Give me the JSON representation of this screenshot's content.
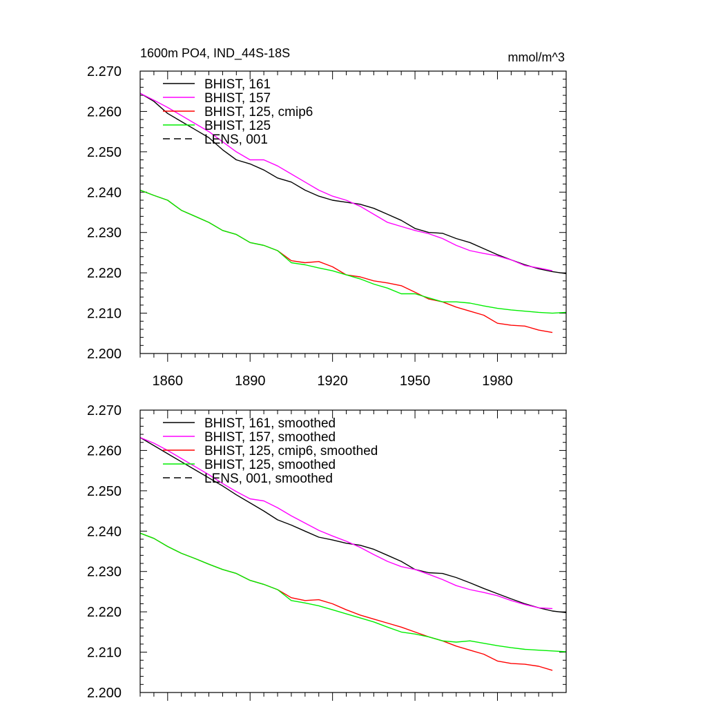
{
  "colors": {
    "black": "#000000",
    "magenta": "#ff00ff",
    "red": "#ff0000",
    "green": "#00ee00"
  },
  "chart_data": [
    {
      "type": "line",
      "title": "1600m PO4, IND_44S-18S",
      "units": "mmol/m^3",
      "ylim": [
        2.2,
        2.27
      ],
      "xlim": [
        1850,
        2005
      ],
      "y_ticks": [
        "2.200",
        "2.210",
        "2.220",
        "2.230",
        "2.240",
        "2.250",
        "2.260",
        "2.270"
      ],
      "x_ticks": [
        "1860",
        "1890",
        "1920",
        "1950",
        "1980"
      ],
      "show_x_tick_labels": true,
      "legend": "top-left",
      "series": [
        {
          "name": "BHIST, 161",
          "color": "#000000",
          "dash": "solid",
          "x": [
            1850,
            1855,
            1860,
            1865,
            1870,
            1875,
            1880,
            1885,
            1890,
            1895,
            1900,
            1905,
            1910,
            1915,
            1920,
            1925,
            1930,
            1935,
            1940,
            1945,
            1950,
            1955,
            1960,
            1965,
            1970,
            1975,
            1980,
            1985,
            1990,
            1995,
            2000,
            2005
          ],
          "y": [
            2.2645,
            2.2625,
            2.2595,
            2.2575,
            2.2555,
            2.2535,
            2.2505,
            2.248,
            2.247,
            2.2455,
            2.2435,
            2.2425,
            2.2405,
            2.239,
            2.238,
            2.2375,
            2.237,
            2.236,
            2.2345,
            2.233,
            2.231,
            2.23,
            2.2298,
            2.2285,
            2.2275,
            2.226,
            2.2245,
            2.2232,
            2.222,
            2.221,
            2.2203,
            2.2198
          ]
        },
        {
          "name": "BHIST, 157",
          "color": "#ff00ff",
          "dash": "solid",
          "x": [
            1850,
            1855,
            1860,
            1865,
            1870,
            1875,
            1880,
            1885,
            1890,
            1895,
            1900,
            1905,
            1910,
            1915,
            1920,
            1925,
            1930,
            1935,
            1940,
            1945,
            1950,
            1955,
            1960,
            1965,
            1970,
            1975,
            1980,
            1985,
            1990,
            1995,
            2000
          ],
          "y": [
            2.2645,
            2.2628,
            2.261,
            2.259,
            2.257,
            2.255,
            2.2525,
            2.25,
            2.248,
            2.248,
            2.2465,
            2.2445,
            2.2425,
            2.2405,
            2.239,
            2.238,
            2.2365,
            2.2345,
            2.2325,
            2.2315,
            2.2305,
            2.2297,
            2.2285,
            2.2268,
            2.2255,
            2.2248,
            2.2242,
            2.2232,
            2.2218,
            2.2212,
            2.2205
          ]
        },
        {
          "name": "BHIST, 125, cmip6",
          "color": "#ff0000",
          "dash": "solid",
          "x": [
            1850,
            1855,
            1860,
            1865,
            1870,
            1875,
            1880,
            1885,
            1890,
            1895,
            1900,
            1905,
            1910,
            1915,
            1920,
            1925,
            1930,
            1935,
            1940,
            1945,
            1950,
            1955,
            1960,
            1965,
            1970,
            1975,
            1980,
            1985,
            1990,
            1995,
            2000
          ],
          "y": [
            2.2405,
            2.2392,
            2.238,
            2.2355,
            2.234,
            2.2325,
            2.2305,
            2.2295,
            2.2275,
            2.2268,
            2.2255,
            2.223,
            2.2225,
            2.2228,
            2.2215,
            2.2195,
            2.219,
            2.218,
            2.2175,
            2.2168,
            2.2152,
            2.2135,
            2.2128,
            2.2115,
            2.2105,
            2.2095,
            2.2075,
            2.207,
            2.2068,
            2.2058,
            2.2052
          ]
        },
        {
          "name": "BHIST, 125",
          "color": "#00ee00",
          "dash": "solid",
          "x": [
            1850,
            1855,
            1860,
            1865,
            1870,
            1875,
            1880,
            1885,
            1890,
            1895,
            1900,
            1905,
            1910,
            1915,
            1920,
            1925,
            1930,
            1935,
            1940,
            1945,
            1950,
            1955,
            1960,
            1965,
            1970,
            1975,
            1980,
            1985,
            1990,
            1995,
            2000,
            2005
          ],
          "y": [
            2.2405,
            2.2392,
            2.238,
            2.2355,
            2.234,
            2.2325,
            2.2305,
            2.2295,
            2.2275,
            2.2268,
            2.2255,
            2.2225,
            2.222,
            2.2212,
            2.2205,
            2.2195,
            2.2185,
            2.2172,
            2.2162,
            2.2148,
            2.2148,
            2.2138,
            2.2128,
            2.2128,
            2.2125,
            2.2118,
            2.2112,
            2.2108,
            2.2105,
            2.2102,
            2.21,
            2.2102
          ]
        },
        {
          "name": "LENS, 001",
          "color": "#000000",
          "dash": "dashed",
          "x": [],
          "y": []
        }
      ]
    },
    {
      "type": "line",
      "title": "",
      "units": "",
      "ylim": [
        2.2,
        2.27
      ],
      "xlim": [
        1850,
        2005
      ],
      "y_ticks": [
        "2.200",
        "2.210",
        "2.220",
        "2.230",
        "2.240",
        "2.250",
        "2.260",
        "2.270"
      ],
      "x_ticks": [
        "1860",
        "1890",
        "1920",
        "1950",
        "1980"
      ],
      "show_x_tick_labels": false,
      "legend": "top-left",
      "series": [
        {
          "name": "BHIST, 161, smoothed",
          "color": "#000000",
          "dash": "solid",
          "x": [
            1850,
            1855,
            1860,
            1865,
            1870,
            1875,
            1880,
            1885,
            1890,
            1895,
            1900,
            1905,
            1910,
            1915,
            1920,
            1925,
            1930,
            1935,
            1940,
            1945,
            1950,
            1955,
            1960,
            1965,
            1970,
            1975,
            1980,
            1985,
            1990,
            1995,
            2000,
            2005
          ],
          "y": [
            2.2632,
            2.2612,
            2.2592,
            2.2572,
            2.2552,
            2.2532,
            2.2512,
            2.249,
            2.247,
            2.245,
            2.2428,
            2.2415,
            2.24,
            2.2385,
            2.2378,
            2.237,
            2.2365,
            2.2355,
            2.234,
            2.2325,
            2.2305,
            2.2297,
            2.2295,
            2.2285,
            2.2272,
            2.2258,
            2.2245,
            2.2232,
            2.222,
            2.221,
            2.2202,
            2.2198
          ]
        },
        {
          "name": "BHIST, 157, smoothed",
          "color": "#ff00ff",
          "dash": "solid",
          "x": [
            1850,
            1855,
            1860,
            1865,
            1870,
            1875,
            1880,
            1885,
            1890,
            1895,
            1900,
            1905,
            1910,
            1915,
            1920,
            1925,
            1930,
            1935,
            1940,
            1945,
            1950,
            1955,
            1960,
            1965,
            1970,
            1975,
            1980,
            1985,
            1990,
            1995,
            2000
          ],
          "y": [
            2.2632,
            2.2618,
            2.26,
            2.258,
            2.256,
            2.254,
            2.2518,
            2.2498,
            2.248,
            2.2475,
            2.2458,
            2.2438,
            2.242,
            2.2402,
            2.2388,
            2.2375,
            2.236,
            2.2342,
            2.2325,
            2.2312,
            2.2305,
            2.2293,
            2.228,
            2.2265,
            2.2255,
            2.2248,
            2.224,
            2.2228,
            2.2218,
            2.221,
            2.2208
          ]
        },
        {
          "name": "BHIST, 125, cmip6, smoothed",
          "color": "#ff0000",
          "dash": "solid",
          "x": [
            1850,
            1855,
            1860,
            1865,
            1870,
            1875,
            1880,
            1885,
            1890,
            1895,
            1900,
            1905,
            1910,
            1915,
            1920,
            1925,
            1930,
            1935,
            1940,
            1945,
            1950,
            1955,
            1960,
            1965,
            1970,
            1975,
            1980,
            1985,
            1990,
            1995,
            2000
          ],
          "y": [
            2.2395,
            2.2382,
            2.2362,
            2.2345,
            2.2332,
            2.2318,
            2.2305,
            2.2295,
            2.2278,
            2.2268,
            2.2255,
            2.2235,
            2.2228,
            2.223,
            2.222,
            2.2205,
            2.2192,
            2.2182,
            2.2172,
            2.2162,
            2.215,
            2.2138,
            2.2128,
            2.2115,
            2.2105,
            2.2095,
            2.2078,
            2.2072,
            2.207,
            2.2065,
            2.2055
          ]
        },
        {
          "name": "BHIST, 125, smoothed",
          "color": "#00ee00",
          "dash": "solid",
          "x": [
            1850,
            1855,
            1860,
            1865,
            1870,
            1875,
            1880,
            1885,
            1890,
            1895,
            1900,
            1905,
            1910,
            1915,
            1920,
            1925,
            1930,
            1935,
            1940,
            1945,
            1950,
            1955,
            1960,
            1965,
            1970,
            1975,
            1980,
            1985,
            1990,
            1995,
            2000,
            2005
          ],
          "y": [
            2.2395,
            2.2382,
            2.2362,
            2.2345,
            2.2332,
            2.2318,
            2.2305,
            2.2295,
            2.2278,
            2.2268,
            2.2255,
            2.2228,
            2.2222,
            2.2215,
            2.2205,
            2.2195,
            2.2185,
            2.2175,
            2.2162,
            2.215,
            2.2145,
            2.2138,
            2.2128,
            2.2125,
            2.2128,
            2.2122,
            2.2116,
            2.2111,
            2.2107,
            2.2105,
            2.2103,
            2.2101
          ]
        },
        {
          "name": "LENS, 001, smoothed",
          "color": "#000000",
          "dash": "dashed",
          "x": [],
          "y": []
        }
      ]
    }
  ]
}
